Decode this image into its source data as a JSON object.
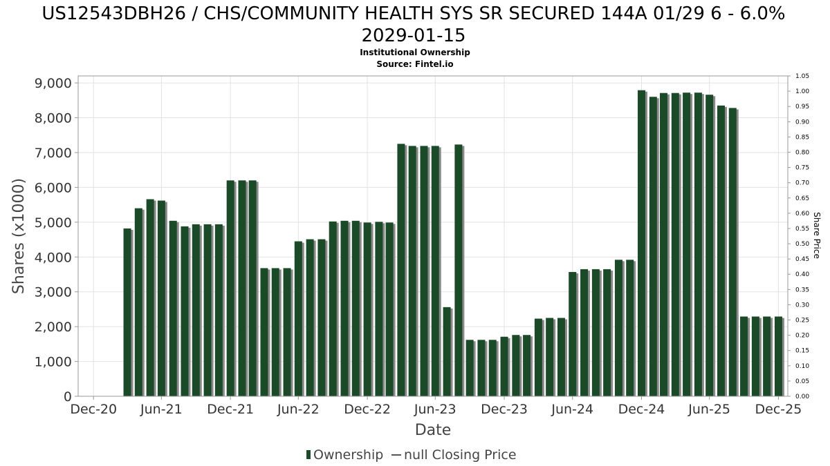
{
  "chart_data": {
    "type": "bar",
    "title": "US12543DBH26 / CHS/COMMUNITY HEALTH SYS SR SECURED 144A 01/29 6 - 6.0% 2029-01-15",
    "title_lines": [
      "US12543DBH26 / CHS/COMMUNITY HEALTH SYS SR SECURED 144A 01/29 6 - 6.0%",
      "2029-01-15"
    ],
    "subtitle": "Institutional Ownership",
    "source": "Source: Fintel.io",
    "xlabel": "Date",
    "ylabel": "Shares (x1000)",
    "y2label": "Share Price",
    "ylim": [
      0,
      9200
    ],
    "y2lim": [
      0,
      1.05
    ],
    "xlim": [
      "2020-11-20",
      "2026-01-25"
    ],
    "x_ticks": [
      {
        "date": "2020-12-31",
        "label": "Dec-20"
      },
      {
        "date": "2021-06-30",
        "label": "Jun-21"
      },
      {
        "date": "2021-12-31",
        "label": "Dec-21"
      },
      {
        "date": "2022-06-30",
        "label": "Jun-22"
      },
      {
        "date": "2022-12-31",
        "label": "Dec-22"
      },
      {
        "date": "2023-06-30",
        "label": "Jun-23"
      },
      {
        "date": "2023-12-31",
        "label": "Dec-23"
      },
      {
        "date": "2024-06-30",
        "label": "Jun-24"
      },
      {
        "date": "2024-12-31",
        "label": "Dec-24"
      },
      {
        "date": "2025-06-30",
        "label": "Jun-25"
      },
      {
        "date": "2025-12-31",
        "label": "Dec-25"
      }
    ],
    "y_ticks": [
      {
        "value": 0,
        "label": "0"
      },
      {
        "value": 1000,
        "label": "1,000"
      },
      {
        "value": 2000,
        "label": "2,000"
      },
      {
        "value": 3000,
        "label": "3,000"
      },
      {
        "value": 4000,
        "label": "4,000"
      },
      {
        "value": 5000,
        "label": "5,000"
      },
      {
        "value": 6000,
        "label": "6,000"
      },
      {
        "value": 7000,
        "label": "7,000"
      },
      {
        "value": 8000,
        "label": "8,000"
      },
      {
        "value": 9000,
        "label": "9,000"
      }
    ],
    "y2_ticks": [
      "0.00",
      "0.05",
      "0.10",
      "0.15",
      "0.20",
      "0.25",
      "0.30",
      "0.35",
      "0.40",
      "0.45",
      "0.50",
      "0.55",
      "0.60",
      "0.65",
      "0.70",
      "0.75",
      "0.80",
      "0.85",
      "0.90",
      "0.95",
      "1.00",
      "1.05"
    ],
    "grid": true,
    "legend_position": "bottom",
    "series": [
      {
        "name": "Ownership",
        "color": "#1b4a28",
        "shadow_color": "#8a8a8a",
        "points": [
          {
            "x": "2021-03-31",
            "y": 4820
          },
          {
            "x": "2021-04-30",
            "y": 5400
          },
          {
            "x": "2021-05-31",
            "y": 5660
          },
          {
            "x": "2021-06-30",
            "y": 5620
          },
          {
            "x": "2021-07-31",
            "y": 5040
          },
          {
            "x": "2021-08-31",
            "y": 4880
          },
          {
            "x": "2021-09-30",
            "y": 4940
          },
          {
            "x": "2021-10-31",
            "y": 4940
          },
          {
            "x": "2021-11-30",
            "y": 4940
          },
          {
            "x": "2021-12-31",
            "y": 6200
          },
          {
            "x": "2022-01-31",
            "y": 6200
          },
          {
            "x": "2022-02-28",
            "y": 6200
          },
          {
            "x": "2022-03-31",
            "y": 3680
          },
          {
            "x": "2022-04-30",
            "y": 3680
          },
          {
            "x": "2022-05-31",
            "y": 3680
          },
          {
            "x": "2022-06-30",
            "y": 4450
          },
          {
            "x": "2022-07-31",
            "y": 4510
          },
          {
            "x": "2022-08-31",
            "y": 4510
          },
          {
            "x": "2022-09-30",
            "y": 5020
          },
          {
            "x": "2022-10-31",
            "y": 5040
          },
          {
            "x": "2022-11-30",
            "y": 5040
          },
          {
            "x": "2022-12-31",
            "y": 4990
          },
          {
            "x": "2023-01-31",
            "y": 5010
          },
          {
            "x": "2023-02-28",
            "y": 4990
          },
          {
            "x": "2023-03-31",
            "y": 7250
          },
          {
            "x": "2023-04-30",
            "y": 7190
          },
          {
            "x": "2023-05-31",
            "y": 7190
          },
          {
            "x": "2023-06-30",
            "y": 7190
          },
          {
            "x": "2023-07-31",
            "y": 2560
          },
          {
            "x": "2023-08-31",
            "y": 7230
          },
          {
            "x": "2023-09-30",
            "y": 1620
          },
          {
            "x": "2023-10-31",
            "y": 1620
          },
          {
            "x": "2023-11-30",
            "y": 1620
          },
          {
            "x": "2023-12-31",
            "y": 1710
          },
          {
            "x": "2024-01-31",
            "y": 1760
          },
          {
            "x": "2024-02-29",
            "y": 1760
          },
          {
            "x": "2024-03-31",
            "y": 2230
          },
          {
            "x": "2024-04-30",
            "y": 2250
          },
          {
            "x": "2024-05-31",
            "y": 2250
          },
          {
            "x": "2024-06-30",
            "y": 3570
          },
          {
            "x": "2024-07-31",
            "y": 3650
          },
          {
            "x": "2024-08-31",
            "y": 3650
          },
          {
            "x": "2024-09-30",
            "y": 3650
          },
          {
            "x": "2024-10-31",
            "y": 3920
          },
          {
            "x": "2024-11-30",
            "y": 3920
          },
          {
            "x": "2024-12-31",
            "y": 8790
          },
          {
            "x": "2025-01-31",
            "y": 8600
          },
          {
            "x": "2025-02-28",
            "y": 8710
          },
          {
            "x": "2025-03-31",
            "y": 8710
          },
          {
            "x": "2025-04-30",
            "y": 8720
          },
          {
            "x": "2025-05-31",
            "y": 8720
          },
          {
            "x": "2025-06-30",
            "y": 8660
          },
          {
            "x": "2025-07-31",
            "y": 8350
          },
          {
            "x": "2025-08-31",
            "y": 8280
          },
          {
            "x": "2025-09-30",
            "y": 2290
          },
          {
            "x": "2025-10-31",
            "y": 2290
          },
          {
            "x": "2025-11-30",
            "y": 2290
          },
          {
            "x": "2025-12-31",
            "y": 2290
          }
        ]
      }
    ],
    "legend": [
      {
        "label": "Ownership",
        "marker": "bar",
        "color": "#1b4a28"
      },
      {
        "label": "null Closing Price",
        "marker": "line",
        "color": "#555555"
      }
    ]
  }
}
